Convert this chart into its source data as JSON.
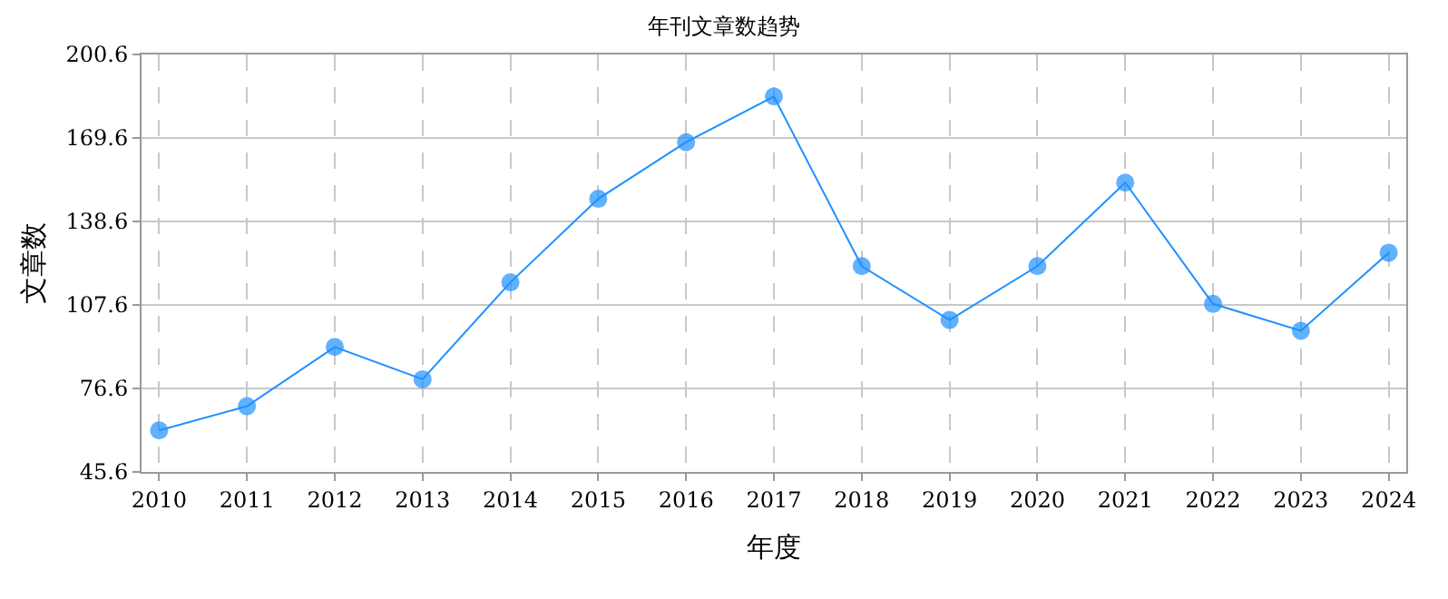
{
  "chart_data": {
    "type": "line",
    "title": "年刊文章数趋势",
    "xlabel": "年度",
    "ylabel": "文章数",
    "categories": [
      "2010",
      "2011",
      "2012",
      "2013",
      "2014",
      "2015",
      "2016",
      "2017",
      "2018",
      "2019",
      "2020",
      "2021",
      "2022",
      "2023",
      "2024"
    ],
    "series": [
      {
        "color": "#1e90ff",
        "values": [
          61,
          70,
          92,
          80,
          116,
          147,
          168,
          185,
          122,
          102,
          122,
          153,
          108,
          98,
          127
        ]
      }
    ],
    "ylim": [
      45.6,
      200.6
    ],
    "yticks": [
      45.6,
      76.6,
      107.6,
      138.6,
      169.6,
      200.6
    ],
    "grid": true,
    "marker": "circle",
    "line_style": "solid"
  }
}
